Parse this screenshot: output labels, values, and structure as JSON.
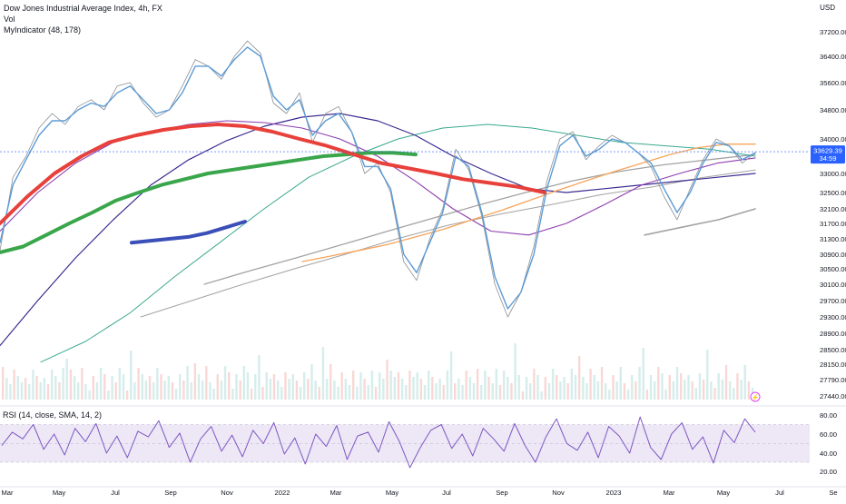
{
  "header": {
    "title": "Dow Jones Industrial Average Index, 4h, FX",
    "vol_label": "Vol",
    "indicator_label": "MyIndicator (48, 178)",
    "currency": "USD",
    "rsi_label": "RSI (14, close, SMA, 14, 2)"
  },
  "price_badges": {
    "last_price": "33629.39",
    "countdown": "34:59"
  },
  "colors": {
    "price": "#8c8f96",
    "smooth": "#5b9bd5",
    "ma_red": "#e8403a",
    "ma_green": "#3aa64b",
    "ma_blue": "#3b4fb8",
    "ma_orange": "#f6a45a",
    "ma_purple": "#8d3fb0",
    "ma_navy": "#3a2a8f",
    "ma_teal": "#3aa88e",
    "ma_gray": "#a3a3a3",
    "rsi_line": "#7e57c2",
    "rsi_band": "#ede7f6",
    "badge_bg": "#2962ff"
  },
  "chart_data": [
    {
      "type": "line",
      "panel": "price",
      "x_tick_labels": [
        "Mar",
        "May",
        "Jul",
        "Sep",
        "Nov",
        "2022",
        "Mar",
        "May",
        "Jul",
        "Sep",
        "Nov",
        "2023",
        "Mar",
        "May",
        "Jul",
        "Se"
      ],
      "y_tick_labels": [
        "37200.00",
        "36400.00",
        "35600.00",
        "34800.00",
        "34000.00",
        "33000.00",
        "32500.00",
        "32100.00",
        "31700.00",
        "31300.00",
        "30900.00",
        "30500.00",
        "30100.00",
        "29700.00",
        "29300.00",
        "28900.00",
        "28500.00",
        "28150.00",
        "27790.00",
        "27440.00"
      ],
      "series": [
        {
          "key": "price",
          "values": [
            31000,
            32900,
            33500,
            34300,
            34700,
            34400,
            34900,
            35100,
            34800,
            35500,
            35600,
            35000,
            34600,
            34800,
            35500,
            36300,
            36100,
            35700,
            36400,
            36900,
            36500,
            35000,
            34700,
            35300,
            33900,
            34700,
            34900,
            34200,
            33000,
            33300,
            32500,
            30700,
            30200,
            31300,
            32100,
            33700,
            33100,
            31900,
            30100,
            29300,
            29900,
            31100,
            32800,
            34000,
            34200,
            33400,
            33800,
            34100,
            33900,
            33600,
            33200,
            32400,
            31800,
            32600,
            33400,
            34000,
            33800,
            33300,
            33600
          ]
        },
        {
          "key": "smooth",
          "values": [
            31200,
            32700,
            33400,
            34100,
            34500,
            34500,
            34800,
            35000,
            34900,
            35300,
            35500,
            35100,
            34700,
            34800,
            35300,
            36100,
            36100,
            35800,
            36300,
            36700,
            36400,
            35200,
            34800,
            35100,
            34100,
            34500,
            34700,
            34200,
            33200,
            33200,
            32600,
            30900,
            30400,
            31200,
            32000,
            33500,
            33200,
            32000,
            30300,
            29500,
            29900,
            30900,
            32600,
            33800,
            34100,
            33500,
            33700,
            34000,
            33900,
            33600,
            33300,
            32600,
            32000,
            32500,
            33300,
            33900,
            33800,
            33400,
            33600
          ]
        },
        {
          "key": "ma_red",
          "values": [
            null,
            31700,
            32400,
            33000,
            33500,
            33900,
            34100,
            34250,
            34350,
            34400,
            34350,
            34200,
            34000,
            33800,
            33550,
            33300,
            33150,
            33000,
            32850,
            32750,
            32650,
            32500
          ]
        },
        {
          "key": "ma_green",
          "values": [
            null,
            30950,
            31100,
            31400,
            31700,
            32000,
            32300,
            32500,
            32700,
            32850,
            33000,
            33100,
            33200,
            33300,
            33400,
            33500,
            33550,
            33600,
            33600,
            33550
          ]
        },
        {
          "key": "ma_blue",
          "values": [
            null,
            31200,
            31250,
            31300,
            31350,
            31450,
            31600,
            31750
          ]
        },
        {
          "key": "ma_orange",
          "values": [
            null,
            30700,
            30850,
            31000,
            31150,
            31350,
            31550,
            31800,
            32050,
            32300,
            32550,
            32800,
            33050,
            33300,
            33550,
            33750,
            33850,
            33850
          ]
        },
        {
          "key": "ma_purple",
          "values": [
            null,
            31500,
            32500,
            33300,
            33900,
            34200,
            34400,
            34500,
            34450,
            34300,
            34000,
            33500,
            32800,
            32100,
            31500,
            31400,
            31700,
            32200,
            32700,
            33000,
            33300,
            33450
          ]
        },
        {
          "key": "ma_navy",
          "values": [
            null,
            28600,
            29700,
            30800,
            31800,
            32700,
            33400,
            33950,
            34350,
            34600,
            34700,
            34500,
            34100,
            33500,
            33000,
            32600,
            32500,
            32600,
            32700,
            32800,
            32900,
            33000
          ]
        },
        {
          "key": "ma_teal",
          "values": [
            null,
            28200,
            28700,
            29400,
            30300,
            31200,
            32100,
            32900,
            33500,
            34000,
            34300,
            34400,
            34300,
            34100,
            33900,
            33800,
            33700,
            33500
          ]
        },
        {
          "key": "ma_gray",
          "values": [
            null,
            29300,
            29700,
            30100,
            30500,
            30900,
            31300,
            31650,
            31950,
            32200,
            32450,
            32650,
            32900,
            33100
          ]
        },
        {
          "key": "ma_gray_low",
          "values": [
            null,
            30100,
            30450,
            30800,
            31150,
            31500,
            31850,
            32200,
            32500,
            32800,
            33050,
            33250,
            33400,
            33550
          ]
        },
        {
          "key": "ma_gray_tail",
          "values": [
            null,
            31400,
            31600,
            31800,
            32100
          ]
        }
      ]
    },
    {
      "type": "line",
      "panel": "rsi",
      "y_tick_labels": [
        "80.00",
        "60.00",
        "40.00",
        "20.00"
      ],
      "band": [
        30,
        70
      ],
      "series": [
        {
          "key": "rsi",
          "values": [
            48,
            62,
            55,
            70,
            44,
            60,
            38,
            66,
            52,
            71,
            40,
            58,
            35,
            63,
            57,
            74,
            46,
            61,
            30,
            55,
            68,
            42,
            59,
            36,
            64,
            50,
            72,
            39,
            56,
            28,
            60,
            47,
            69,
            33,
            58,
            62,
            41,
            73,
            52,
            24,
            46,
            64,
            70,
            45,
            60,
            37,
            66,
            55,
            42,
            71,
            48,
            30,
            57,
            76,
            50,
            43,
            62,
            35,
            68,
            58,
            40,
            78,
            46,
            33,
            60,
            72,
            44,
            57,
            29,
            64,
            51,
            76,
            62
          ]
        }
      ]
    }
  ]
}
